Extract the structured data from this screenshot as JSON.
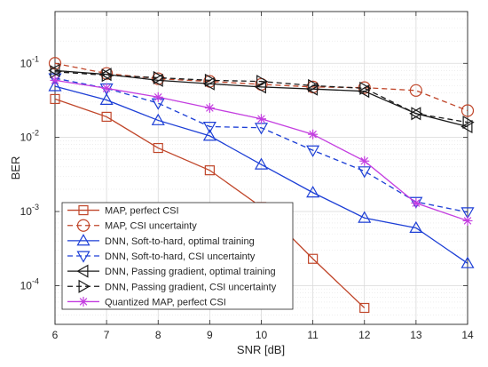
{
  "chart_data": {
    "type": "line",
    "title": "",
    "xlabel": "SNR [dB]",
    "ylabel": "BER",
    "xscale": "linear",
    "yscale": "log",
    "xlim": [
      6,
      14
    ],
    "ylim": [
      3e-05,
      0.5
    ],
    "xticks": [
      6,
      7,
      8,
      9,
      10,
      11,
      12,
      13,
      14
    ],
    "yticks": [
      {
        "value": 0.1,
        "base": "10",
        "exp": "-1"
      },
      {
        "value": 0.01,
        "base": "10",
        "exp": "-2"
      },
      {
        "value": 0.001,
        "base": "10",
        "exp": "-3"
      },
      {
        "value": 0.0001,
        "base": "10",
        "exp": "-4"
      }
    ],
    "grid": true,
    "minor_grid": true,
    "legend_position": "bottom-left",
    "series": [
      {
        "name": "MAP, perfect CSI",
        "color": "#c0462a",
        "dash": "solid",
        "marker": "square",
        "x": [
          6,
          7,
          8,
          9,
          10,
          11,
          12
        ],
        "y": [
          0.033,
          0.019,
          0.0072,
          0.0036,
          0.00115,
          0.00023,
          5e-05
        ]
      },
      {
        "name": "MAP, CSI uncertainty",
        "color": "#c0462a",
        "dash": "dashed",
        "marker": "circle",
        "x": [
          6,
          7,
          8,
          9,
          10,
          11,
          12,
          13,
          14
        ],
        "y": [
          0.1,
          0.073,
          0.062,
          0.057,
          0.052,
          0.048,
          0.047,
          0.043,
          0.023
        ]
      },
      {
        "name": "DNN, Soft-to-hard, optimal training",
        "color": "#1d3fd6",
        "dash": "solid",
        "marker": "triangle-up",
        "x": [
          6,
          7,
          8,
          9,
          10,
          11,
          12,
          13,
          14
        ],
        "y": [
          0.049,
          0.032,
          0.017,
          0.0105,
          0.0043,
          0.0018,
          0.00082,
          0.0006,
          0.0002
        ]
      },
      {
        "name": "DNN, Soft-to-hard, CSI uncertainty",
        "color": "#1d3fd6",
        "dash": "dashed",
        "marker": "triangle-down",
        "x": [
          6,
          7,
          8,
          9,
          10,
          11,
          12,
          13,
          14
        ],
        "y": [
          0.063,
          0.046,
          0.029,
          0.014,
          0.0135,
          0.0067,
          0.0035,
          0.00135,
          0.00098
        ]
      },
      {
        "name": "DNN, Passing gradient, optimal training",
        "color": "#1a1a1a",
        "dash": "solid",
        "marker": "triangle-left",
        "x": [
          6,
          7,
          8,
          9,
          10,
          11,
          12,
          13,
          14
        ],
        "y": [
          0.08,
          0.071,
          0.059,
          0.053,
          0.048,
          0.045,
          0.042,
          0.021,
          0.014
        ]
      },
      {
        "name": "DNN, Passing gradient, CSI uncertainty",
        "color": "#1a1a1a",
        "dash": "dashed",
        "marker": "triangle-right",
        "x": [
          6,
          7,
          8,
          9,
          10,
          11,
          12,
          13,
          14
        ],
        "y": [
          0.077,
          0.069,
          0.064,
          0.059,
          0.057,
          0.05,
          0.046,
          0.021,
          0.016
        ]
      },
      {
        "name": "Quantized MAP, perfect CSI",
        "color": "#c43ee0",
        "dash": "solid",
        "marker": "asterisk",
        "x": [
          6,
          7,
          8,
          9,
          10,
          11,
          12,
          13,
          14
        ],
        "y": [
          0.059,
          0.046,
          0.035,
          0.025,
          0.0178,
          0.011,
          0.0048,
          0.0013,
          0.00075
        ]
      }
    ]
  }
}
